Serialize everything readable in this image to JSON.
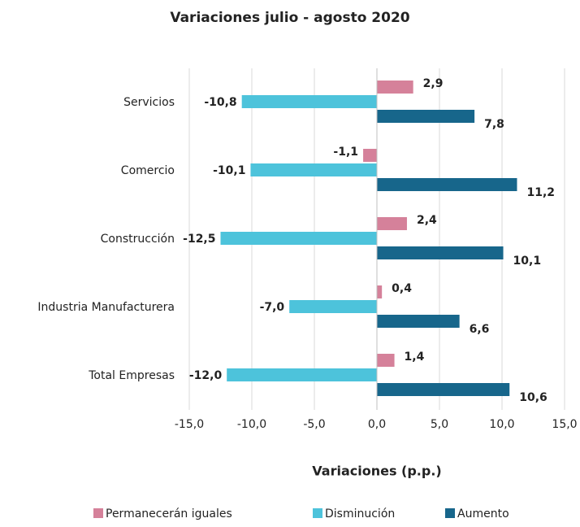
{
  "chart_data": {
    "type": "barh",
    "title": "Variaciones julio - agosto 2020",
    "x_label": "Variaciones (p.p.)",
    "categories": [
      "Servicios",
      "Comercio",
      "Construcción",
      "Industria Manufacturera",
      "Total Empresas"
    ],
    "series": [
      {
        "name": "Permanecerán iguales",
        "color": "#d5819a",
        "values": [
          2.9,
          -1.1,
          2.4,
          0.4,
          1.4
        ],
        "value_labels": [
          "2,9",
          "-1,1",
          "2,4",
          "0,4",
          "1,4"
        ]
      },
      {
        "name": "Disminución",
        "color": "#4dc3db",
        "values": [
          -10.8,
          -10.1,
          -12.5,
          -7.0,
          -12.0
        ],
        "value_labels": [
          "-10,8",
          "-10,1",
          "-12,5",
          "-7,0",
          "-12,0"
        ]
      },
      {
        "name": "Aumento",
        "color": "#17668b",
        "values": [
          7.8,
          11.2,
          10.1,
          6.6,
          10.6
        ],
        "value_labels": [
          "7,8",
          "11,2",
          "10,1",
          "6,6",
          "10,6"
        ]
      }
    ],
    "xlim": [
      -15,
      15
    ],
    "xticks": [
      {
        "value": -15,
        "label": "-15,0"
      },
      {
        "value": -10,
        "label": "-10,0"
      },
      {
        "value": -5,
        "label": "-5,0"
      },
      {
        "value": 0,
        "label": "0,0"
      },
      {
        "value": 5,
        "label": "5,0"
      },
      {
        "value": 10,
        "label": "10,0"
      },
      {
        "value": 15,
        "label": "15,0"
      }
    ],
    "grid": true,
    "legend": "bottom"
  }
}
